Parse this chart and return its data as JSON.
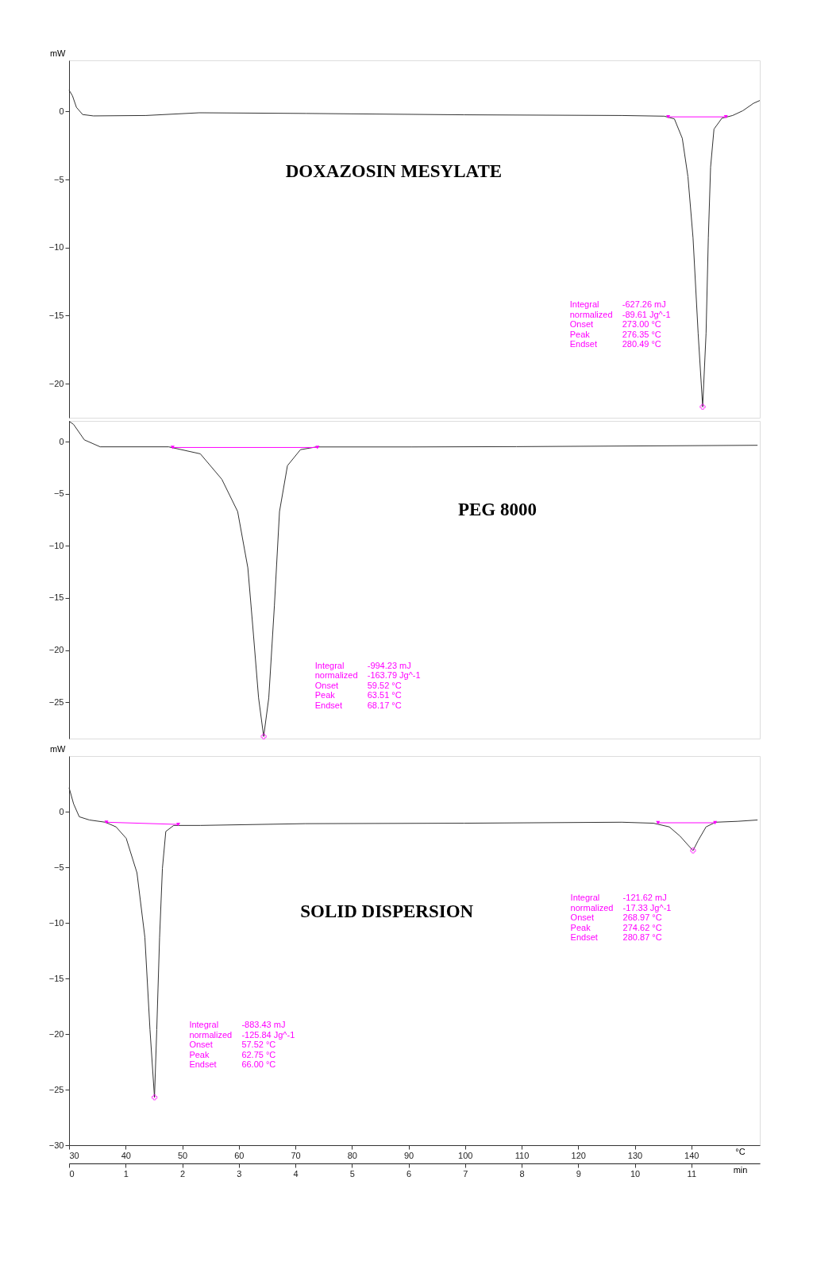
{
  "chart_data": [
    {
      "type": "line",
      "title": "DOXAZOSIN MESYLATE",
      "ylabel": "mW",
      "xlim": [
        30,
        152.1
      ],
      "ylim": [
        -22.5,
        3.75
      ],
      "yticks": [
        0,
        -5,
        -10,
        -15,
        -20
      ],
      "tick_labels": "y",
      "grid": false,
      "x": [
        30.0,
        30.6,
        31.3,
        32.4,
        34.3,
        43.6,
        53.0,
        71.9,
        99.8,
        127.7,
        135.2,
        137.0,
        138.4,
        139.4,
        140.3,
        141.2,
        142.0,
        142.6,
        143.0,
        143.4,
        144.0,
        145.4,
        147.3,
        149.1,
        151.0,
        152.1
      ],
      "series": [
        {
          "color": "#333333",
          "values": [
            1.56,
            1.15,
            0.3,
            -0.23,
            -0.33,
            -0.3,
            -0.1,
            -0.15,
            -0.25,
            -0.3,
            -0.35,
            -0.55,
            -1.98,
            -4.8,
            -9.3,
            -16.3,
            -21.7,
            -16.3,
            -9.3,
            -4.1,
            -1.3,
            -0.5,
            -0.3,
            0.05,
            0.6,
            0.8
          ]
        },
        {
          "type": "line",
          "color": "#ff00ff",
          "marker": "triangle",
          "x": [
            135.9,
            146.1
          ],
          "values": [
            -0.4,
            -0.4
          ]
        },
        {
          "type": "scatter",
          "color": "#ff00ff",
          "marker": "cross",
          "x": [
            142.0
          ],
          "values": [
            -21.7
          ]
        }
      ],
      "annotations": [
        "Integral\nnormalized\nOnset\nPeak\nEndset",
        "-627.26 mJ\n-89.61 Jg^-1\n273.00 °C\n276.35 °C\n280.49 °C"
      ]
    },
    {
      "type": "line",
      "title": "PEG 8000",
      "xlim": [
        30,
        152.1
      ],
      "ylim": [
        -28.5,
        2
      ],
      "yticks": [
        0,
        -5,
        -10,
        -15,
        -20,
        -25
      ],
      "tick_labels": "y",
      "grid": false,
      "x": [
        30.0,
        30.8,
        32.7,
        35.5,
        47.6,
        53.2,
        57.0,
        59.8,
        61.6,
        62.5,
        63.5,
        64.4,
        65.3,
        66.3,
        67.2,
        68.6,
        70.9,
        73.7,
        90.5,
        109.1,
        151.7
      ],
      "series": [
        {
          "color": "#333333",
          "values": [
            1.97,
            1.66,
            0.18,
            -0.49,
            -0.49,
            -1.16,
            -3.6,
            -6.7,
            -12.1,
            -17.9,
            -24.6,
            -28.3,
            -24.6,
            -15.7,
            -6.7,
            -2.3,
            -0.76,
            -0.5,
            -0.5,
            -0.47,
            -0.34
          ]
        },
        {
          "type": "line",
          "color": "#ff00ff",
          "marker": "triangle",
          "x": [
            48.3,
            73.9
          ],
          "values": [
            -0.55,
            -0.55
          ]
        },
        {
          "type": "scatter",
          "color": "#ff00ff",
          "marker": "cross",
          "x": [
            64.4
          ],
          "values": [
            -28.3
          ]
        }
      ],
      "annotations": [
        "Integral\nnormalized\nOnset\nPeak\nEndset",
        "-994.23 mJ\n-163.79 Jg^-1\n59.52 °C\n63.51 °C\n68.17 °C"
      ]
    },
    {
      "type": "line",
      "title": "SOLID DISPERSION",
      "ylabel": "mW",
      "xlabel": "°C",
      "x2label": "min",
      "xlim": [
        30,
        152.1
      ],
      "xticks": [
        30,
        40,
        50,
        60,
        70,
        80,
        90,
        100,
        110,
        120,
        130,
        140
      ],
      "x2lim": [
        0,
        12.21
      ],
      "x2ticks": [
        0,
        1,
        2,
        3,
        4,
        5,
        6,
        7,
        8,
        9,
        10,
        11
      ],
      "ylim": [
        -30,
        5
      ],
      "yticks": [
        0,
        -5,
        -10,
        -15,
        -20,
        -25,
        -30
      ],
      "grid": false,
      "x": [
        30.0,
        30.8,
        31.8,
        33.6,
        36.4,
        38.3,
        40.1,
        42.0,
        43.4,
        44.3,
        45.1,
        45.5,
        46.0,
        46.5,
        47.1,
        48.5,
        53.2,
        71.8,
        99.8,
        127.7,
        133.3,
        136.1,
        138.0,
        139.4,
        140.3,
        141.2,
        142.6,
        144.3,
        148.2,
        151.7
      ],
      "series": [
        {
          "color": "#333333",
          "values": [
            2.15,
            0.7,
            -0.46,
            -0.75,
            -0.95,
            -1.37,
            -2.4,
            -5.5,
            -11.3,
            -19.6,
            -25.7,
            -19.6,
            -11.3,
            -5.1,
            -1.78,
            -1.24,
            -1.24,
            -1.08,
            -1.04,
            -0.95,
            -1.04,
            -1.37,
            -2.2,
            -3.0,
            -3.5,
            -2.6,
            -1.37,
            -0.95,
            -0.87,
            -0.75
          ]
        },
        {
          "type": "line",
          "color": "#ff00ff",
          "marker": "triangle",
          "x": [
            36.6,
            49.3
          ],
          "values": [
            -0.95,
            -1.15
          ]
        },
        {
          "type": "line",
          "color": "#ff00ff",
          "marker": "triangle",
          "x": [
            134.1,
            144.2
          ],
          "values": [
            -1.0,
            -1.0
          ]
        },
        {
          "type": "scatter",
          "color": "#ff00ff",
          "marker": "cross",
          "x": [
            45.1,
            140.3
          ],
          "values": [
            -25.7,
            -3.5
          ]
        }
      ],
      "annotations": [
        "Integral\nnormalized\nOnset\nPeak\nEndset",
        "-883.43 mJ\n-125.84 Jg^-1\n57.52 °C\n62.75 °C\n66.00 °C",
        "Integral\nnormalized\nOnset\nPeak\nEndset",
        "-121.62 mJ\n-17.33 Jg^-1\n268.97 °C\n274.62 °C\n280.87 °C"
      ]
    }
  ]
}
